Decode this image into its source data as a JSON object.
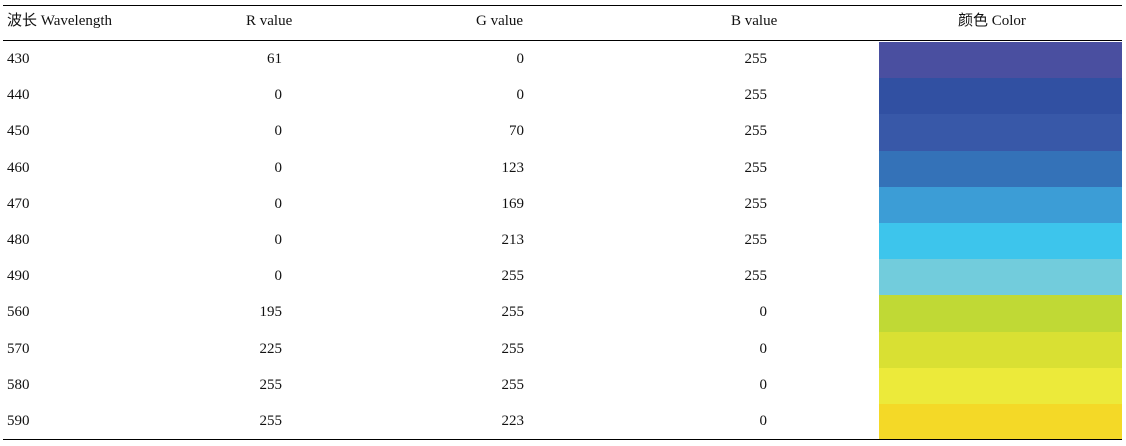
{
  "table": {
    "headers": {
      "wavelength": "波长  Wavelength",
      "r": "R value",
      "g": "G value",
      "b": "B value",
      "color": "颜色 Color"
    },
    "rows": [
      {
        "wavelength": "430",
        "r": "61",
        "g": "0",
        "b": "255",
        "color": "#4a4fa0"
      },
      {
        "wavelength": "440",
        "r": "0",
        "g": "0",
        "b": "255",
        "color": "#3150a2"
      },
      {
        "wavelength": "450",
        "r": "0",
        "g": "70",
        "b": "255",
        "color": "#3858a8"
      },
      {
        "wavelength": "460",
        "r": "0",
        "g": "123",
        "b": "255",
        "color": "#3472b8"
      },
      {
        "wavelength": "470",
        "r": "0",
        "g": "169",
        "b": "255",
        "color": "#3c9dd6"
      },
      {
        "wavelength": "480",
        "r": "0",
        "g": "213",
        "b": "255",
        "color": "#3dc5ec"
      },
      {
        "wavelength": "490",
        "r": "0",
        "g": "255",
        "b": "255",
        "color": "#72ccdc"
      },
      {
        "wavelength": "560",
        "r": "195",
        "g": "255",
        "b": "0",
        "color": "#c0d935"
      },
      {
        "wavelength": "570",
        "r": "225",
        "g": "255",
        "b": "0",
        "color": "#d9e033"
      },
      {
        "wavelength": "580",
        "r": "255",
        "g": "255",
        "b": "0",
        "color": "#ecea3a"
      },
      {
        "wavelength": "590",
        "r": "255",
        "g": "223",
        "b": "0",
        "color": "#f4d927"
      }
    ]
  }
}
